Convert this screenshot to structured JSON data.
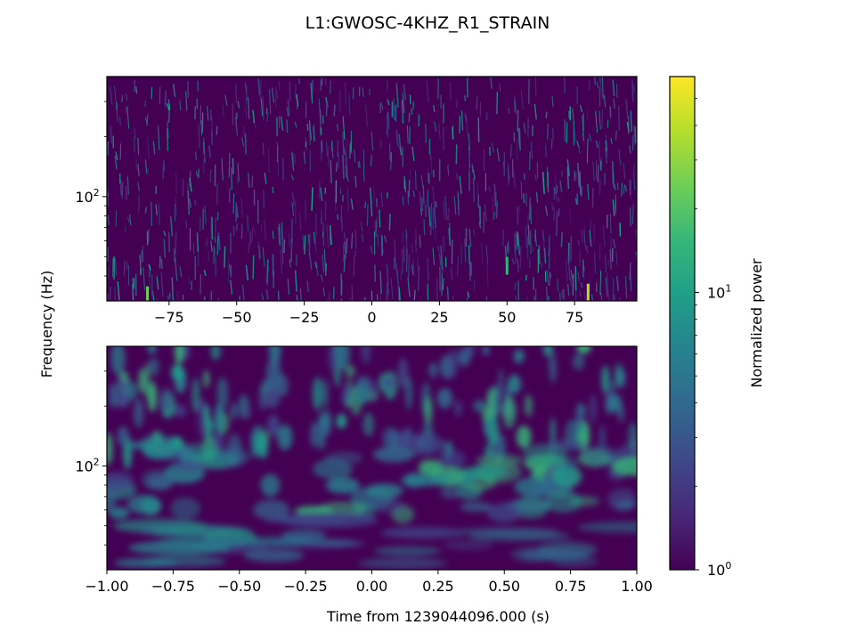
{
  "chart_data": [
    {
      "type": "heatmap",
      "panel": "top",
      "title": "L1:GWOSC-4KHZ_R1_STRAIN",
      "ylabel": "Frequency (Hz)",
      "yscale": "log",
      "ylim": [
        30,
        400
      ],
      "xlim": [
        -98,
        98
      ],
      "x_ticks": [
        "−75",
        "−50",
        "−25",
        "0",
        "25",
        "50",
        "75"
      ],
      "x_tick_values": [
        -75,
        -50,
        -25,
        0,
        25,
        50,
        75
      ],
      "y_ticks": [
        "10",
        "2"
      ],
      "y_tick_values": [
        100
      ],
      "colormap": "viridis",
      "description_values": "narrow vertical streaks of normalized power; mostly near 1, occasional bright bursts near x=50 and x=80 at low frequency"
    },
    {
      "type": "heatmap",
      "panel": "bottom",
      "xlabel": "Time from 1239044096.000 (s)",
      "yscale": "log",
      "ylim": [
        30,
        400
      ],
      "xlim": [
        -1,
        1
      ],
      "x_ticks": [
        "−1.00",
        "−0.75",
        "−0.50",
        "−0.25",
        "0.00",
        "0.25",
        "0.50",
        "0.75",
        "1.00"
      ],
      "x_tick_values": [
        -1,
        -0.75,
        -0.5,
        -0.25,
        0,
        0.25,
        0.5,
        0.75,
        1
      ],
      "y_ticks": [
        "10",
        "2"
      ],
      "y_tick_values": [
        100
      ],
      "colormap": "viridis"
    }
  ],
  "colorbar": {
    "label": "Normalized power",
    "scale": "log",
    "range": [
      1,
      60
    ],
    "ticks": [
      {
        "base": "10",
        "exp": "0",
        "value": 1
      },
      {
        "base": "10",
        "exp": "1",
        "value": 10
      }
    ],
    "colors": [
      "#440154",
      "#482878",
      "#3e4989",
      "#31688e",
      "#26828e",
      "#1f9e89",
      "#35b779",
      "#6ece58",
      "#b5de2b",
      "#fde725"
    ]
  }
}
